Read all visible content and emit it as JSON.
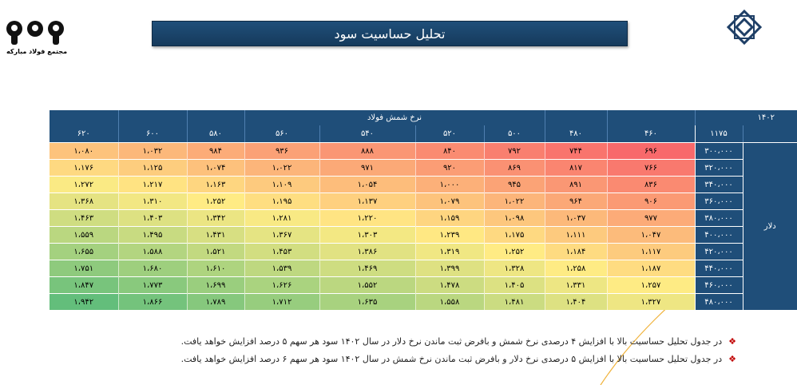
{
  "header": {
    "title": "تحلیل حساسیت سود",
    "brand_caption": "مجتمع فولاد مبارکه"
  },
  "table": {
    "year_label": "۱۴۰۲",
    "column_group_label": "نرخ شمش فولاد",
    "row_group_label": "دلار",
    "corner_value": "۱۱۷۵",
    "col_headers": [
      "۴۶۰",
      "۴۸۰",
      "۵۰۰",
      "۵۲۰",
      "۵۴۰",
      "۵۶۰",
      "۵۸۰",
      "۶۰۰",
      "۶۲۰"
    ],
    "rows": [
      {
        "y": "۳۰۰،۰۰۰",
        "values": [
          "۶۹۶",
          "۷۴۴",
          "۷۹۲",
          "۸۴۰",
          "۸۸۸",
          "۹۳۶",
          "۹۸۴",
          "۱،۰۳۲",
          "۱،۰۸۰"
        ]
      },
      {
        "y": "۳۲۰،۰۰۰",
        "values": [
          "۷۶۶",
          "۸۱۷",
          "۸۶۹",
          "۹۲۰",
          "۹۷۱",
          "۱،۰۲۲",
          "۱،۰۷۴",
          "۱،۱۲۵",
          "۱،۱۷۶"
        ]
      },
      {
        "y": "۳۴۰،۰۰۰",
        "values": [
          "۸۳۶",
          "۸۹۱",
          "۹۴۵",
          "۱،۰۰۰",
          "۱،۰۵۴",
          "۱،۱۰۹",
          "۱،۱۶۳",
          "۱،۲۱۷",
          "۱،۲۷۲"
        ]
      },
      {
        "y": "۳۶۰،۰۰۰",
        "values": [
          "۹۰۶",
          "۹۶۴",
          "۱،۰۲۲",
          "۱،۰۷۹",
          "۱،۱۳۷",
          "۱،۱۹۵",
          "۱،۲۵۲",
          "۱،۳۱۰",
          "۱،۳۶۸"
        ]
      },
      {
        "y": "۳۸۰،۰۰۰",
        "values": [
          "۹۷۷",
          "۱،۰۳۷",
          "۱،۰۹۸",
          "۱،۱۵۹",
          "۱،۲۲۰",
          "۱،۲۸۱",
          "۱،۳۴۲",
          "۱،۴۰۳",
          "۱،۴۶۳"
        ]
      },
      {
        "y": "۴۰۰،۰۰۰",
        "values": [
          "۱،۰۴۷",
          "۱،۱۱۱",
          "۱،۱۷۵",
          "۱،۲۳۹",
          "۱،۳۰۳",
          "۱،۳۶۷",
          "۱،۴۳۱",
          "۱،۴۹۵",
          "۱،۵۵۹"
        ]
      },
      {
        "y": "۴۲۰،۰۰۰",
        "values": [
          "۱،۱۱۷",
          "۱،۱۸۴",
          "۱،۲۵۲",
          "۱،۳۱۹",
          "۱،۳۸۶",
          "۱،۴۵۳",
          "۱،۵۲۱",
          "۱،۵۸۸",
          "۱،۶۵۵"
        ]
      },
      {
        "y": "۴۴۰،۰۰۰",
        "values": [
          "۱،۱۸۷",
          "۱،۲۵۸",
          "۱،۳۲۸",
          "۱،۳۹۹",
          "۱،۴۶۹",
          "۱،۵۳۹",
          "۱،۶۱۰",
          "۱،۶۸۰",
          "۱،۷۵۱"
        ]
      },
      {
        "y": "۴۶۰،۰۰۰",
        "values": [
          "۱،۲۵۷",
          "۱،۳۳۱",
          "۱،۴۰۵",
          "۱،۴۷۸",
          "۱،۵۵۲",
          "۱،۶۲۶",
          "۱،۶۹۹",
          "۱،۷۷۳",
          "۱،۸۴۷"
        ]
      },
      {
        "y": "۴۸۰،۰۰۰",
        "values": [
          "۱،۳۲۷",
          "۱،۴۰۴",
          "۱،۴۸۱",
          "۱،۵۵۸",
          "۱،۶۳۵",
          "۱،۷۱۲",
          "۱،۷۸۹",
          "۱،۸۶۶",
          "۱،۹۴۲"
        ]
      }
    ]
  },
  "heat_colors": [
    "#f8696b",
    "#ffeb84",
    "#63be7b"
  ],
  "notes": [
    {
      "icon": "diamond-bullet-icon",
      "text": "در جدول تحلیل حساسیت بالا با افزایش ۴ درصدی  نرخ شمش و بافرض ثبت ماندن نرخ دلار در سال ۱۴۰۲ سود هر سهم ۵ درصد افزایش خواهد یافت."
    },
    {
      "icon": "diamond-bullet-icon",
      "text": "در جدول تحلیل حساسیت بالا با افزایش ۵ درصدی نرخ دلار  و بافرض ثبت ماندن نرخ شمش در سال ۱۴۰۲ سود هر سهم ۶ درصد افزایش خواهد یافت."
    }
  ]
}
